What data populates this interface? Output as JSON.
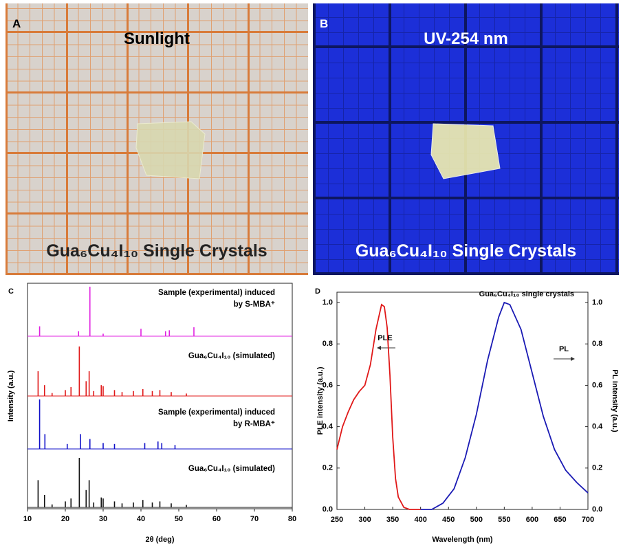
{
  "panels": [
    {
      "label": "A",
      "title": "Sunlight",
      "caption": "Gua₆Cu₄I₁₀ Single Crystals"
    },
    {
      "label": "B",
      "title": "UV-254 nm",
      "caption": "Gua₆Cu₄I₁₀ Single Crystals"
    }
  ],
  "chart_data": [
    {
      "type": "stick",
      "label": "C",
      "xlabel": "2θ (deg)",
      "ylabel": "Intensity (a.u.)",
      "xlim": [
        10,
        80
      ],
      "xticks": [
        10,
        20,
        30,
        40,
        50,
        60,
        70,
        80
      ],
      "series": [
        {
          "name": "Gua₆Cu₄I₁₀ (simulated)",
          "color": "#111111",
          "x": [
            12.8,
            14.5,
            16.5,
            20,
            21.5,
            23.7,
            25.5,
            26.3,
            27.5,
            29.5,
            30,
            33,
            35,
            38,
            40.5,
            43,
            45,
            48,
            52
          ],
          "values": [
            0.55,
            0.25,
            0.06,
            0.12,
            0.18,
            1.0,
            0.35,
            0.55,
            0.1,
            0.2,
            0.18,
            0.12,
            0.08,
            0.1,
            0.15,
            0.1,
            0.12,
            0.08,
            0.05
          ]
        },
        {
          "name": "Sample (experimental) induced by R-MBA⁺",
          "color": "#1010c8",
          "x": [
            13.2,
            14.6,
            20.5,
            24,
            26.5,
            30,
            33,
            41,
            44.5,
            45.5,
            49
          ],
          "values": [
            1.0,
            0.3,
            0.1,
            0.3,
            0.2,
            0.12,
            0.1,
            0.12,
            0.15,
            0.12,
            0.08
          ]
        },
        {
          "name": "Gua₆Cu₄I₁₀ (simulated)",
          "color": "#e01818",
          "x": [
            12.8,
            14.5,
            16.5,
            20,
            21.5,
            23.7,
            25.5,
            26.3,
            27.5,
            29.5,
            30,
            33,
            35,
            38,
            40.5,
            43,
            45,
            48,
            52
          ],
          "values": [
            0.5,
            0.22,
            0.06,
            0.12,
            0.18,
            1.0,
            0.3,
            0.5,
            0.1,
            0.22,
            0.2,
            0.12,
            0.08,
            0.1,
            0.14,
            0.1,
            0.12,
            0.08,
            0.05
          ]
        },
        {
          "name": "Sample (experimental) induced by S-MBA⁺",
          "color": "#e020e0",
          "x": [
            13.2,
            23.5,
            26.5,
            30,
            40,
            46.5,
            47.5,
            54
          ],
          "values": [
            0.2,
            0.1,
            1.0,
            0.05,
            0.15,
            0.1,
            0.12,
            0.18
          ]
        }
      ]
    },
    {
      "type": "line",
      "label": "D",
      "xlabel": "Wavelength (nm)",
      "ylabel": "PLE intensity (a.u.)",
      "y2label": "PL intensity (a.u.)",
      "annotations": [
        "PLE",
        "PL",
        "Gua₆Cu₄I₁₀ single crystals"
      ],
      "xlim": [
        250,
        700
      ],
      "xticks": [
        250,
        300,
        350,
        400,
        450,
        500,
        550,
        600,
        650,
        700
      ],
      "ylim": [
        0,
        1.05
      ],
      "yticks": [
        {
          "value": 0,
          "label": "0.0"
        },
        0.2,
        0.4,
        0.6,
        0.8,
        {
          "value": 1,
          "label": "1.0"
        }
      ],
      "y2lim": [
        0,
        1.05
      ],
      "y2ticks": [
        {
          "value": 0,
          "label": "0.0"
        },
        0.2,
        0.4,
        0.6,
        0.8,
        {
          "value": 1,
          "label": "1.0"
        }
      ],
      "series": [
        {
          "name": "PLE",
          "color": "#e01818",
          "x": [
            250,
            260,
            270,
            280,
            290,
            300,
            310,
            320,
            330,
            335,
            340,
            345,
            350,
            355,
            360,
            370,
            380,
            400
          ],
          "values": [
            0.29,
            0.4,
            0.47,
            0.53,
            0.57,
            0.6,
            0.7,
            0.87,
            0.99,
            0.98,
            0.88,
            0.65,
            0.35,
            0.15,
            0.06,
            0.01,
            0,
            0
          ]
        },
        {
          "name": "PL",
          "color": "#1a1ab4",
          "axis": "y2",
          "x": [
            400,
            420,
            440,
            460,
            480,
            500,
            520,
            540,
            550,
            560,
            580,
            600,
            620,
            640,
            660,
            680,
            700
          ],
          "values": [
            0,
            0,
            0.03,
            0.1,
            0.25,
            0.46,
            0.72,
            0.93,
            1.0,
            0.99,
            0.87,
            0.66,
            0.45,
            0.29,
            0.19,
            0.13,
            0.08
          ]
        }
      ]
    }
  ]
}
